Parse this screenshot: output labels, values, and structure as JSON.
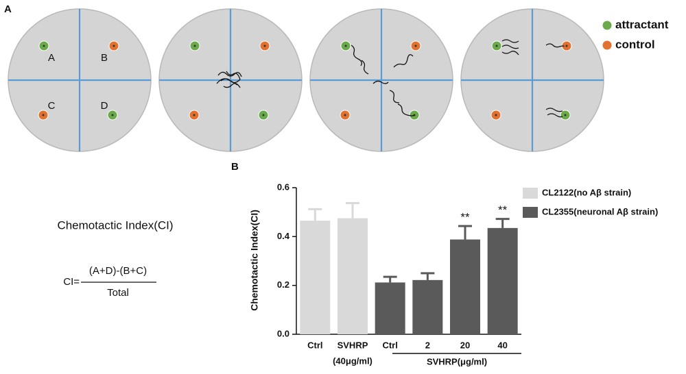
{
  "panel_a": {
    "label": "A",
    "well_labels": [
      "A",
      "B",
      "C",
      "D"
    ],
    "legend": [
      {
        "name": "attractant",
        "color": "#6aaa4a"
      },
      {
        "name": "control",
        "color": "#e2702e"
      }
    ]
  },
  "formula": {
    "title": "Chemotactic Index(CI)",
    "lhs": "CI=",
    "numerator": "(A+D)-(B+C)",
    "denominator": "Total"
  },
  "chart_data": {
    "type": "bar",
    "panel_label": "B",
    "ylabel": "Chemotactic Index(CI)",
    "categories": [
      "Ctrl",
      "SVHRP",
      "Ctrl",
      "2",
      "20",
      "40"
    ],
    "category_sublabels": [
      null,
      "(40μg/ml)",
      null,
      null,
      null,
      null
    ],
    "group_label": "SVHRP(μg/ml)",
    "series": [
      {
        "name": "CL2122(no Aβ strain)",
        "color": "#d9d9d9",
        "values": [
          0.465,
          0.475,
          null,
          null,
          null,
          null
        ],
        "errors": [
          0.047,
          0.062,
          null,
          null,
          null,
          null
        ]
      },
      {
        "name": "CL2355(neuronal Aβ strain)",
        "color": "#5a5a5a",
        "values": [
          null,
          null,
          0.212,
          0.222,
          0.388,
          0.435
        ],
        "errors": [
          null,
          null,
          0.023,
          0.028,
          0.055,
          0.037
        ],
        "significance": [
          null,
          null,
          null,
          null,
          "**",
          "**"
        ]
      }
    ],
    "ylim": [
      0,
      0.6
    ],
    "yticks": [
      {
        "value": 0,
        "label": "0.0"
      },
      0.2,
      0.4,
      0.6
    ],
    "legend": "upper right"
  }
}
